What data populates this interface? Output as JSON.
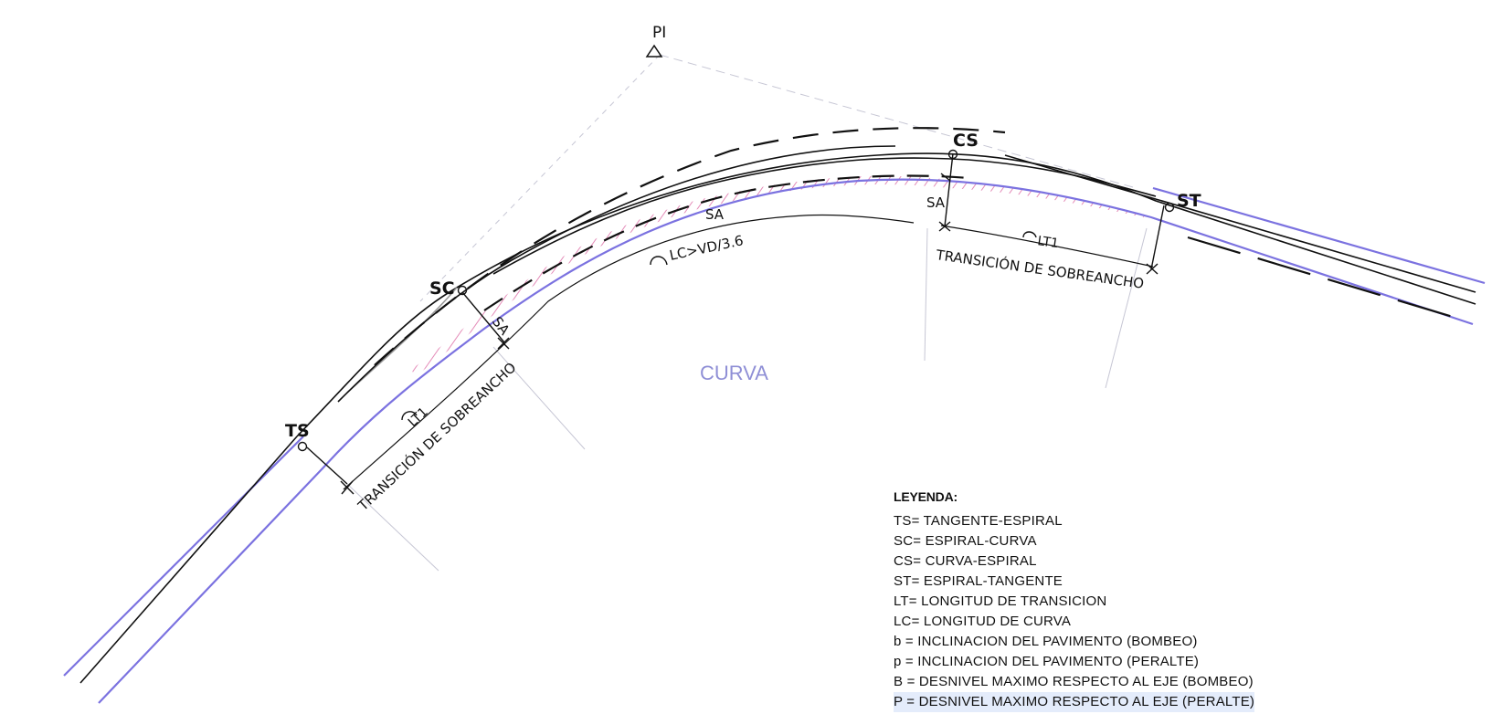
{
  "points": {
    "pi": "PI",
    "ts": "TS",
    "sc": "SC",
    "cs": "CS",
    "st": "ST"
  },
  "labels": {
    "sa": "SA",
    "lt1": "LT1",
    "lc": "LC>VD/3.6",
    "transition": "TRANSICIÓN DE SOBREANCHO",
    "curva": "CURVA"
  },
  "legend": {
    "title": "LEYENDA:",
    "items": [
      "TS= TANGENTE-ESPIRAL",
      "SC= ESPIRAL-CURVA",
      "CS= CURVA-ESPIRAL",
      "ST= ESPIRAL-TANGENTE",
      "LT= LONGITUD DE TRANSICION",
      "LC= LONGITUD DE CURVA",
      "b = INCLINACION DEL PAVIMENTO (BOMBEO)",
      "p = INCLINACION DEL PAVIMENTO (PERALTE)",
      "B = DESNIVEL MAXIMO RESPECTO AL EJE (BOMBEO)",
      "P = DESNIVEL MAXIMO RESPECTO AL EJE (PERALTE)"
    ]
  },
  "colors": {
    "edge_line": "#7b72e0",
    "hatch": "#e48bb8",
    "ink": "#111111",
    "construction": "#b8b8c8"
  }
}
